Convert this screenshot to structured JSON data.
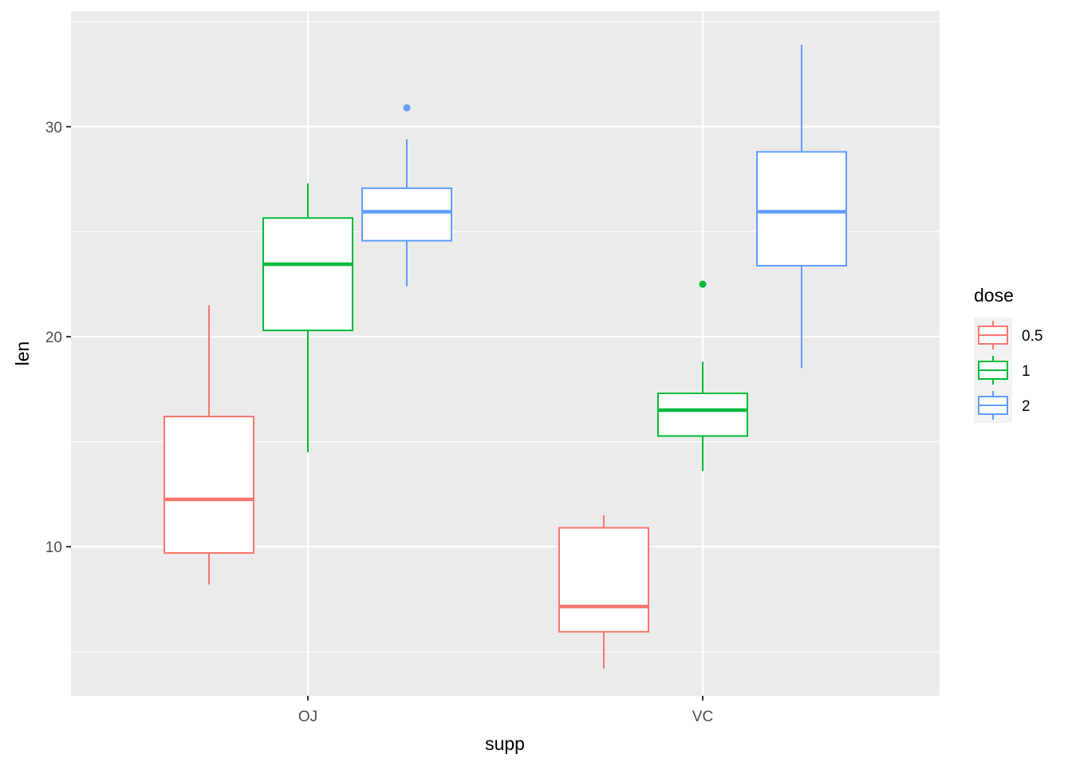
{
  "chart_data": {
    "type": "boxplot",
    "xlabel": "supp",
    "ylabel": "len",
    "categories": [
      "OJ",
      "VC"
    ],
    "ylim": [
      2.9,
      35.5
    ],
    "y_ticks": [
      10,
      20,
      30
    ],
    "grid": true,
    "legend": {
      "title": "dose",
      "position": "right",
      "entries": [
        "0.5",
        "1",
        "2"
      ]
    },
    "series": [
      {
        "name": "0.5",
        "color": "#F8766D",
        "boxes": [
          {
            "category": "OJ",
            "min": 8.2,
            "q1": 9.7,
            "median": 12.25,
            "q3": 16.2,
            "max": 21.5,
            "outliers": []
          },
          {
            "category": "VC",
            "min": 4.2,
            "q1": 5.95,
            "median": 7.15,
            "q3": 10.9,
            "max": 11.5,
            "outliers": []
          }
        ]
      },
      {
        "name": "1",
        "color": "#00BA38",
        "boxes": [
          {
            "category": "OJ",
            "min": 14.5,
            "q1": 20.3,
            "median": 23.45,
            "q3": 25.65,
            "max": 27.3,
            "outliers": []
          },
          {
            "category": "VC",
            "min": 13.6,
            "q1": 15.27,
            "median": 16.5,
            "q3": 17.3,
            "max": 18.8,
            "outliers": [
              22.5
            ]
          }
        ]
      },
      {
        "name": "2",
        "color": "#619CFF",
        "boxes": [
          {
            "category": "OJ",
            "min": 22.4,
            "q1": 24.57,
            "median": 25.95,
            "q3": 27.07,
            "max": 29.4,
            "outliers": [
              30.9
            ]
          },
          {
            "category": "VC",
            "min": 18.5,
            "q1": 23.38,
            "median": 25.95,
            "q3": 28.8,
            "max": 33.9,
            "outliers": []
          }
        ]
      }
    ]
  }
}
